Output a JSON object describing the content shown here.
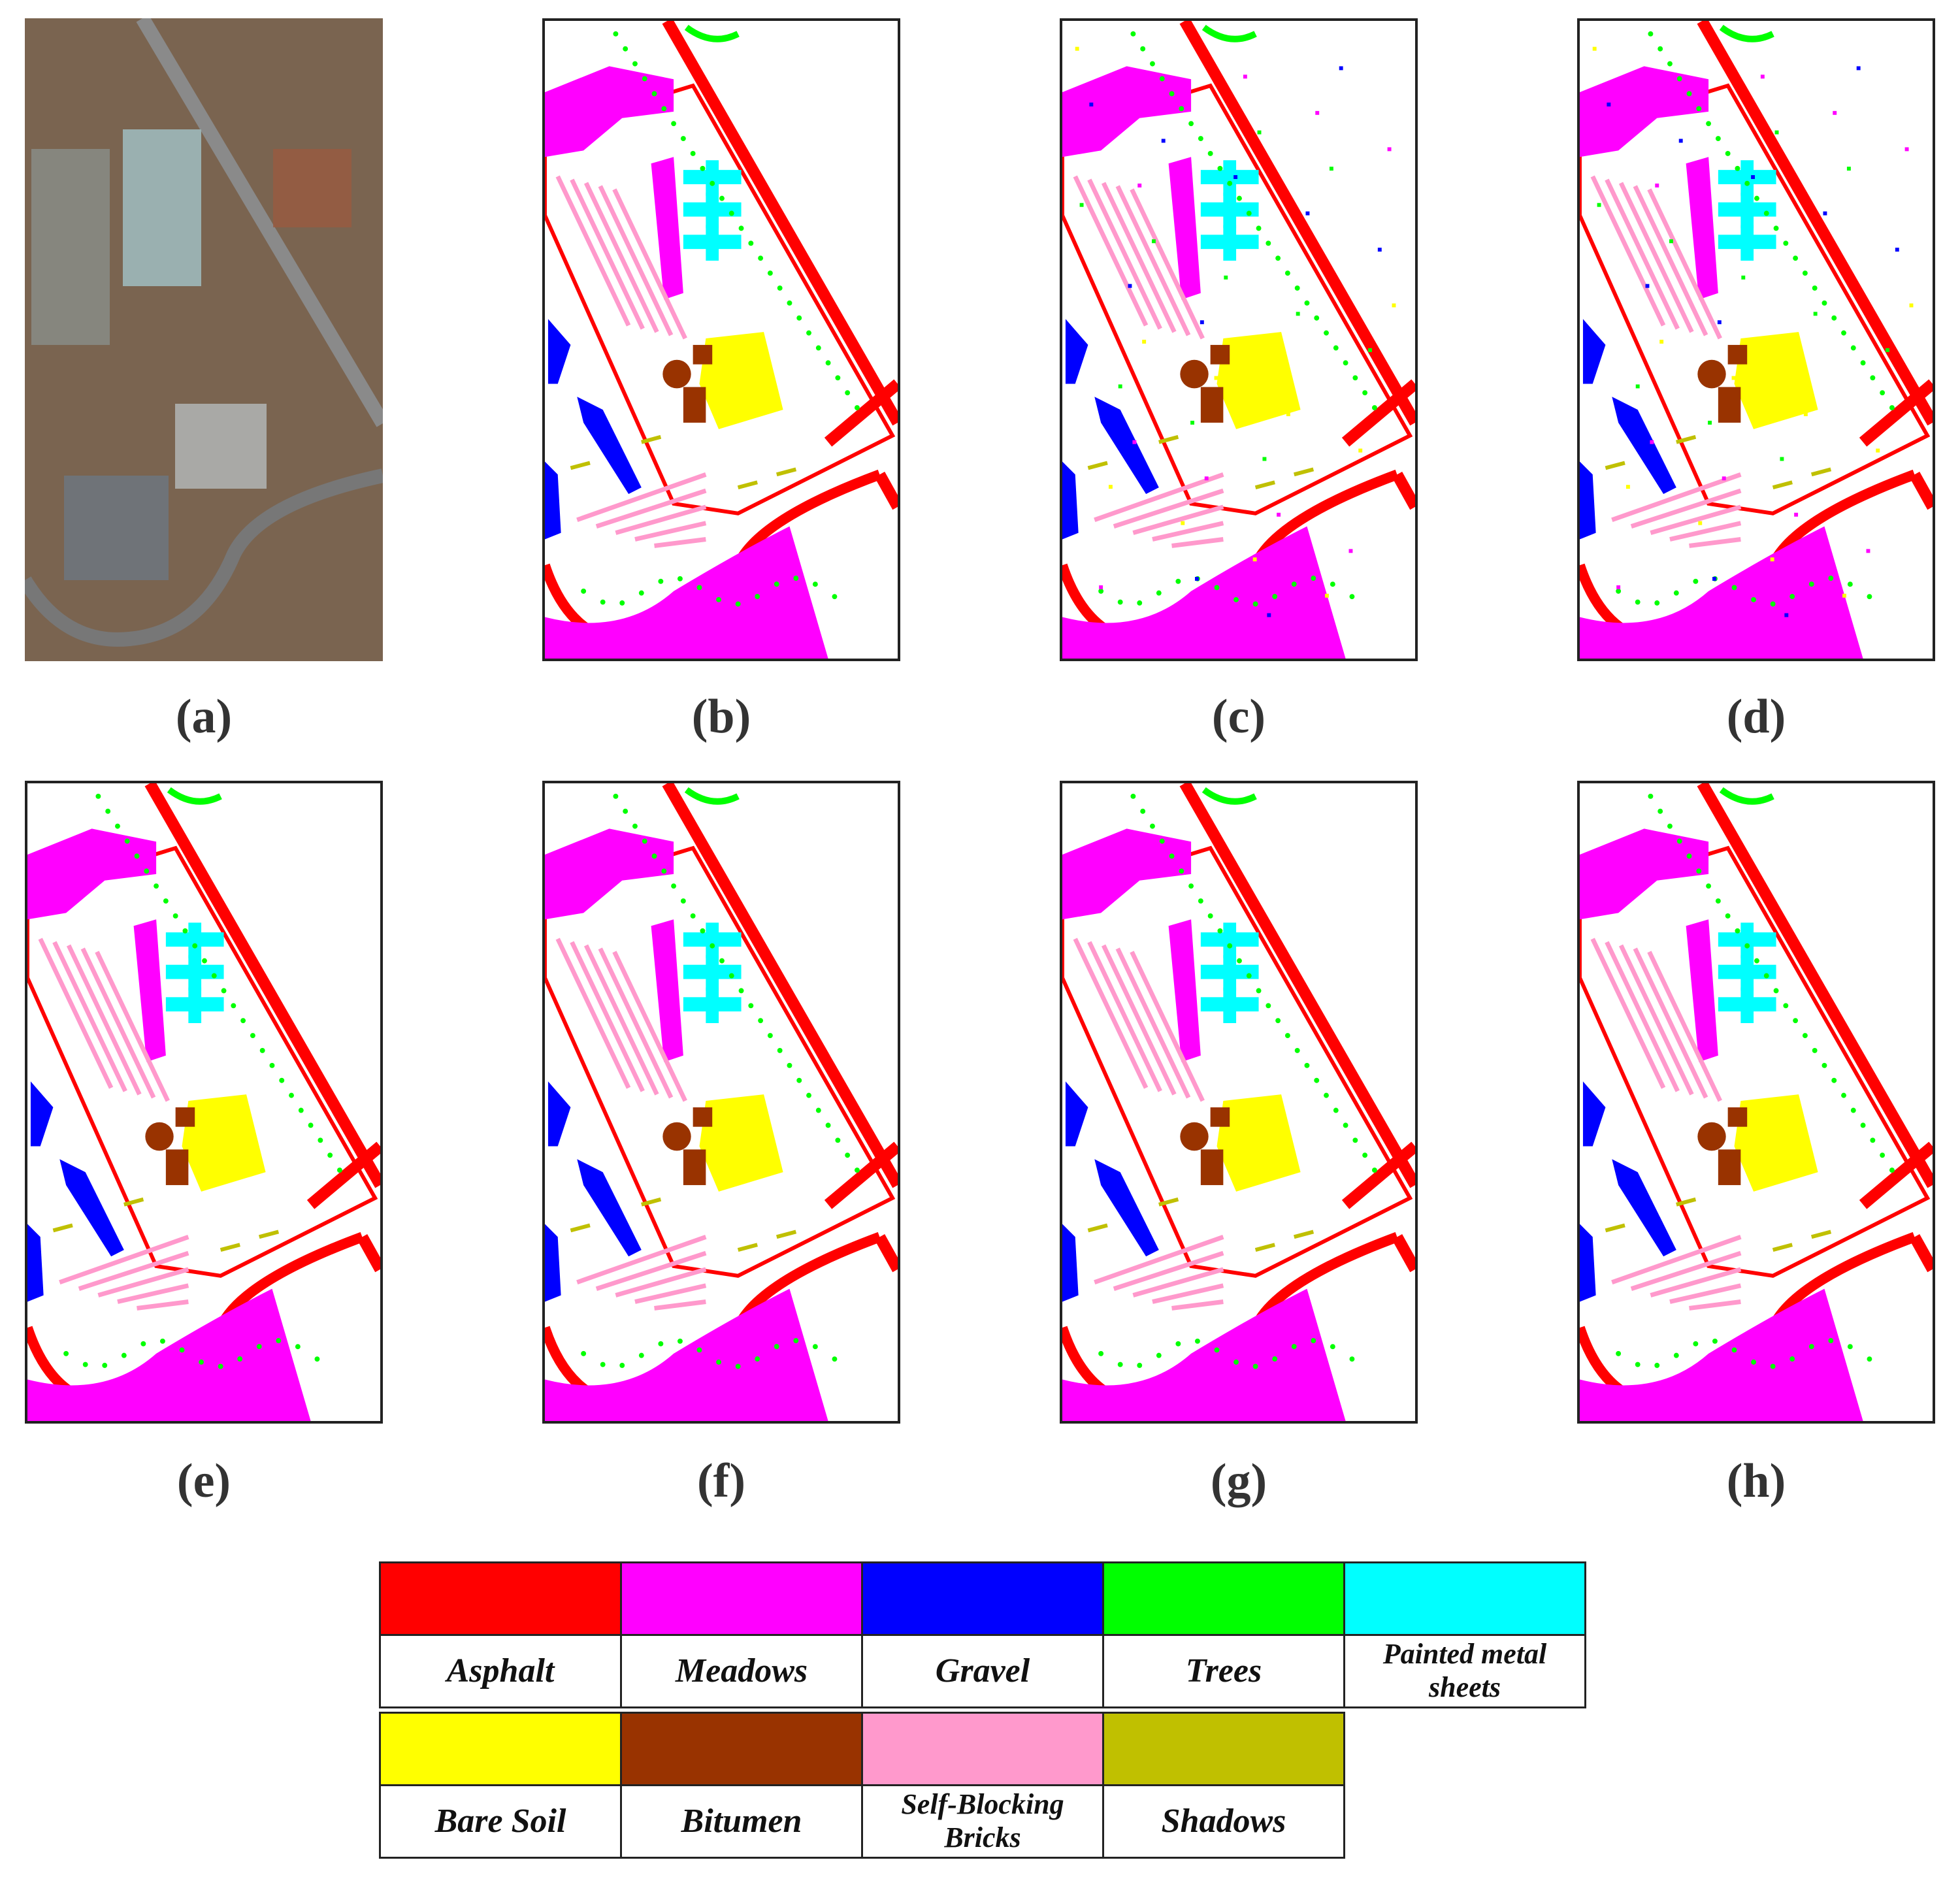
{
  "panels": [
    {
      "label": "(a)",
      "kind": "image"
    },
    {
      "label": "(b)",
      "kind": "map"
    },
    {
      "label": "(c)",
      "kind": "map"
    },
    {
      "label": "(d)",
      "kind": "map"
    },
    {
      "label": "(e)",
      "kind": "map"
    },
    {
      "label": "(f)",
      "kind": "map"
    },
    {
      "label": "(g)",
      "kind": "map"
    },
    {
      "label": "(h)",
      "kind": "map"
    }
  ],
  "legend": [
    {
      "name": "Asphalt",
      "color": "#ff0000"
    },
    {
      "name": "Meadows",
      "color": "#ff00ff"
    },
    {
      "name": "Gravel",
      "color": "#0000ff"
    },
    {
      "name": "Trees",
      "color": "#00ff00"
    },
    {
      "name": "Painted metal sheets",
      "color": "#00ffff"
    },
    {
      "name": "Bare Soil",
      "color": "#ffff00"
    },
    {
      "name": "Bitumen",
      "color": "#993300"
    },
    {
      "name": "Self-Blocking Bricks",
      "color": "#ff99cc"
    },
    {
      "name": "Shadows",
      "color": "#c0c000"
    }
  ]
}
